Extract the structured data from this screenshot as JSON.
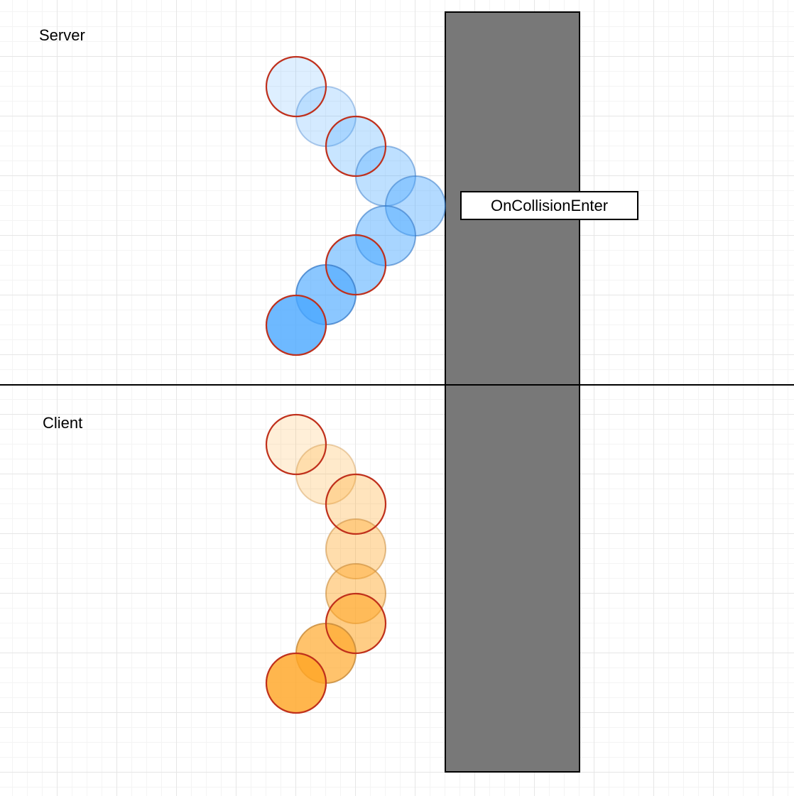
{
  "labels": {
    "server": "Server",
    "client": "Client",
    "collision_event": "OnCollisionEnter"
  },
  "colors": {
    "wall": "#787878",
    "wall_border": "#000000",
    "divider": "#000000",
    "keyframe_outline": "#c0301c",
    "server_ball": "#4aa8ff",
    "server_ball_edge": "#3a7cc8",
    "client_ball": "#ffa626",
    "client_ball_edge": "#c88a3a"
  },
  "icons": {
    "ball": "circle-shape",
    "wall": "rectangle-shape"
  }
}
